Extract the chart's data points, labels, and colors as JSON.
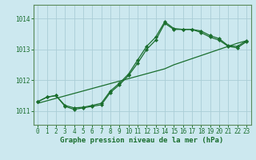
{
  "background_color": "#cce8ef",
  "grid_color": "#aacdd6",
  "line_color": "#1a6e2e",
  "xlabel": "Graphe pression niveau de la mer (hPa)",
  "xlim": [
    -0.5,
    23.5
  ],
  "ylim": [
    1010.55,
    1014.45
  ],
  "yticks": [
    1011,
    1012,
    1013,
    1014
  ],
  "xticks": [
    0,
    1,
    2,
    3,
    4,
    5,
    6,
    7,
    8,
    9,
    10,
    11,
    12,
    13,
    14,
    15,
    16,
    17,
    18,
    19,
    20,
    21,
    22,
    23
  ],
  "hours": [
    0,
    1,
    2,
    3,
    4,
    5,
    6,
    7,
    8,
    9,
    10,
    11,
    12,
    13,
    14,
    15,
    16,
    17,
    18,
    19,
    20,
    21,
    22,
    23
  ],
  "line_straight": [
    1011.25,
    1011.33,
    1011.41,
    1011.49,
    1011.57,
    1011.65,
    1011.73,
    1011.81,
    1011.89,
    1011.97,
    1012.05,
    1012.13,
    1012.21,
    1012.29,
    1012.37,
    1012.5,
    1012.6,
    1012.7,
    1012.8,
    1012.9,
    1013.0,
    1013.1,
    1013.2,
    1013.28
  ],
  "line_jagged1": [
    1011.3,
    1011.45,
    1011.5,
    1011.15,
    1011.05,
    1011.1,
    1011.15,
    1011.2,
    1011.6,
    1011.85,
    1012.15,
    1012.55,
    1013.0,
    1013.3,
    1013.85,
    1013.65,
    1013.65,
    1013.65,
    1013.55,
    1013.4,
    1013.3,
    1013.1,
    1013.05,
    1013.25
  ],
  "line_jagged2": [
    1011.3,
    1011.45,
    1011.5,
    1011.18,
    1011.1,
    1011.12,
    1011.18,
    1011.25,
    1011.65,
    1011.9,
    1012.2,
    1012.65,
    1013.1,
    1013.4,
    1013.9,
    1013.68,
    1013.65,
    1013.65,
    1013.6,
    1013.45,
    1013.35,
    1013.12,
    1013.1,
    1013.28
  ],
  "spine_color": "#5a8a5a",
  "tick_fontsize": 5.5,
  "xlabel_fontsize": 6.5,
  "linewidth": 0.9,
  "markersize": 2.2
}
